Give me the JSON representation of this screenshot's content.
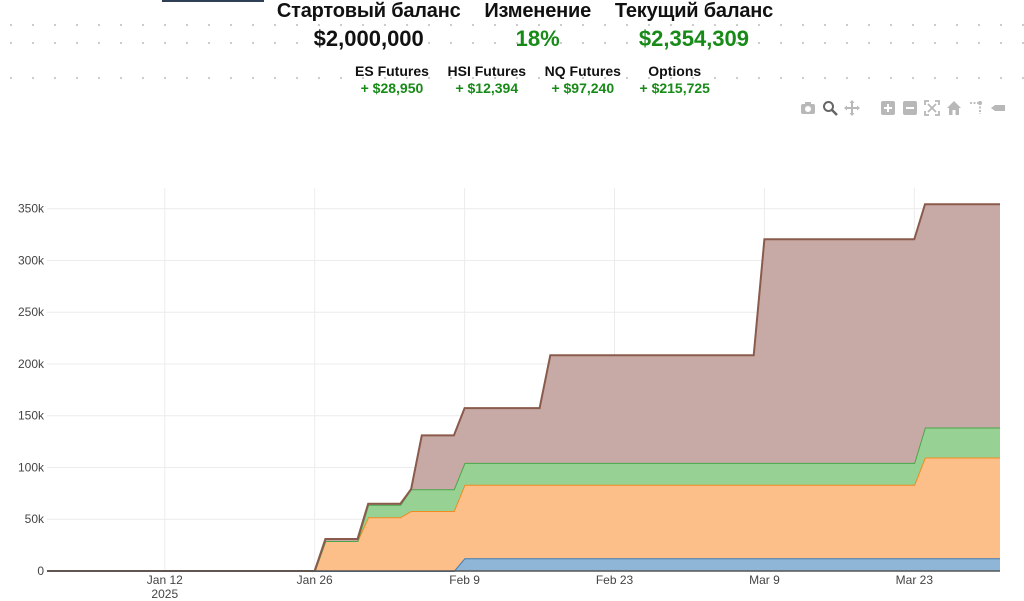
{
  "summary": {
    "start": {
      "label": "Стартовый баланс",
      "value": "$2,000,000"
    },
    "change": {
      "label": "Изменение",
      "value": "18%"
    },
    "current": {
      "label": "Текущий баланс",
      "value": "$2,354,309"
    }
  },
  "breakdown": [
    {
      "label": "ES Futures",
      "value": "+ $28,950"
    },
    {
      "label": "HSI Futures",
      "value": "+ $12,394"
    },
    {
      "label": "NQ Futures",
      "value": "+ $97,240"
    },
    {
      "label": "Options",
      "value": "+ $215,725"
    }
  ],
  "colors": {
    "green_text": "#178a17"
  },
  "modebar": [
    "camera-icon",
    "zoom-icon",
    "pan-icon",
    "zoom-in-icon",
    "zoom-out-icon",
    "autoscale-icon",
    "home-icon",
    "spike-lines-icon",
    "hover-compare-icon"
  ],
  "chart_data": {
    "type": "area",
    "stacked": true,
    "grid": true,
    "legend": "none",
    "xlabel": "",
    "ylabel": "",
    "x_range": [
      "2025-01-01",
      "2025-03-31"
    ],
    "y_range": [
      0,
      370000
    ],
    "y_ticks": [
      0,
      50000,
      100000,
      150000,
      200000,
      250000,
      300000,
      350000
    ],
    "y_tick_labels": [
      "0",
      "50k",
      "100k",
      "150k",
      "200k",
      "250k",
      "300k",
      "350k"
    ],
    "x_ticks": [
      "2025-01-12",
      "2025-01-26",
      "2025-02-09",
      "2025-02-23",
      "2025-03-09",
      "2025-03-23"
    ],
    "x_tick_labels": [
      "Jan 12",
      "Jan 26",
      "Feb 9",
      "Feb 23",
      "Mar 9",
      "Mar 23"
    ],
    "x_tick_sublabels": [
      "2025",
      "",
      "",
      "",
      "",
      ""
    ],
    "series": [
      {
        "color_fill": "#8fb6d6",
        "color_line": "#3d7bb4",
        "x": [
          "2025-01-01",
          "2025-02-08",
          "2025-02-09",
          "2025-03-31"
        ],
        "y": [
          0,
          0,
          12394,
          12394
        ]
      },
      {
        "color_fill": "#fdbf8a",
        "color_line": "#f28a1f",
        "x": [
          "2025-01-01",
          "2025-01-26",
          "2025-01-27",
          "2025-01-30",
          "2025-01-31",
          "2025-02-03",
          "2025-02-04",
          "2025-02-08",
          "2025-02-09",
          "2025-03-23",
          "2025-03-24",
          "2025-03-31"
        ],
        "y": [
          0,
          0,
          28950,
          28950,
          52000,
          52000,
          58000,
          58000,
          71000,
          71000,
          97240,
          97240
        ]
      },
      {
        "color_fill": "#97d294",
        "color_line": "#4aa64a",
        "x": [
          "2025-01-01",
          "2025-01-30",
          "2025-01-31",
          "2025-02-03",
          "2025-02-04",
          "2025-02-08",
          "2025-02-09",
          "2025-03-23",
          "2025-03-24",
          "2025-03-31"
        ],
        "y": [
          0,
          0,
          12000,
          12000,
          21000,
          21000,
          21000,
          21000,
          28950,
          28950
        ]
      },
      {
        "color_fill": "#c7aaa5",
        "color_line": "#8a5a4c",
        "x": [
          "2025-01-01",
          "2025-01-26",
          "2025-01-27",
          "2025-01-30",
          "2025-01-31",
          "2025-02-03",
          "2025-02-04",
          "2025-02-05",
          "2025-02-08",
          "2025-02-09",
          "2025-02-16",
          "2025-02-17",
          "2025-03-08",
          "2025-03-09",
          "2025-03-23",
          "2025-03-24",
          "2025-03-31"
        ],
        "y": [
          0,
          0,
          2000,
          2000,
          1000,
          1000,
          0,
          52000,
          52000,
          53000,
          53000,
          104000,
          104000,
          216000,
          216000,
          215725,
          215725
        ]
      }
    ]
  }
}
